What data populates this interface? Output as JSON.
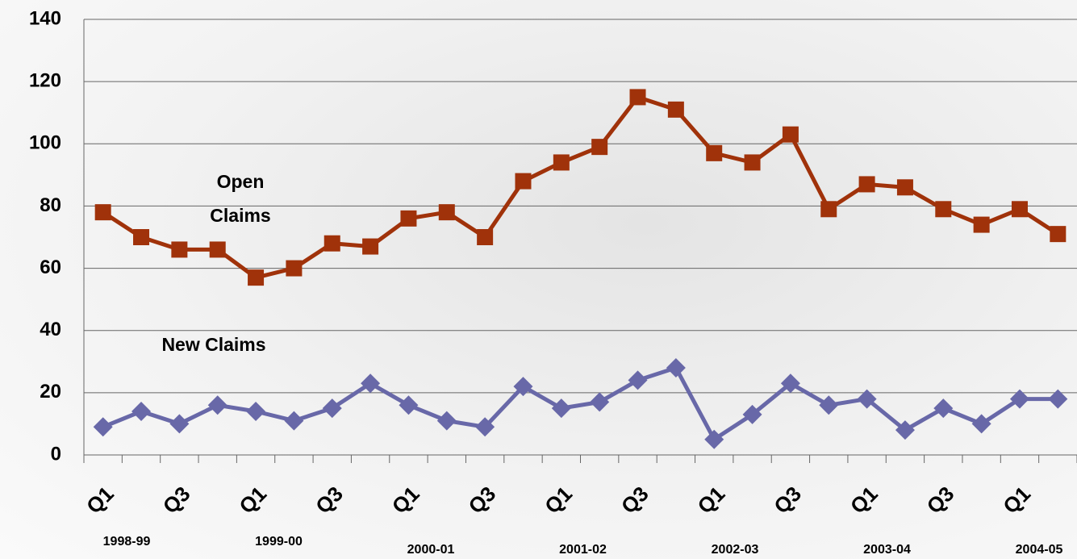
{
  "chart_data": {
    "type": "line",
    "categories": [
      "Q1",
      null,
      "Q3",
      null,
      "Q1",
      null,
      "Q3",
      null,
      "Q1",
      null,
      "Q3",
      null,
      "Q1",
      null,
      "Q3",
      null,
      "Q1",
      null,
      "Q3",
      null,
      "Q1",
      null,
      "Q3",
      null,
      "Q1",
      null
    ],
    "groups": [
      "1998-99",
      "1999-00",
      "2000-01",
      "2001-02",
      "2002-03",
      "2003-04",
      "2004-05"
    ],
    "series": [
      {
        "name": "Open Claims",
        "color": "#a0320a",
        "marker": "square",
        "values": [
          78,
          70,
          66,
          66,
          57,
          60,
          68,
          67,
          76,
          78,
          70,
          88,
          94,
          99,
          115,
          111,
          97,
          94,
          103,
          79,
          87,
          86,
          79,
          74,
          79,
          71
        ]
      },
      {
        "name": "New Claims",
        "color": "#6868a8",
        "marker": "diamond",
        "values": [
          9,
          14,
          10,
          16,
          14,
          11,
          15,
          23,
          16,
          11,
          9,
          22,
          15,
          17,
          24,
          28,
          5,
          13,
          23,
          16,
          18,
          8,
          15,
          10,
          18,
          18
        ]
      }
    ],
    "ylim": [
      0,
      140
    ],
    "yticks": [
      0,
      20,
      40,
      60,
      80,
      100,
      120,
      140
    ],
    "grid": true
  }
}
